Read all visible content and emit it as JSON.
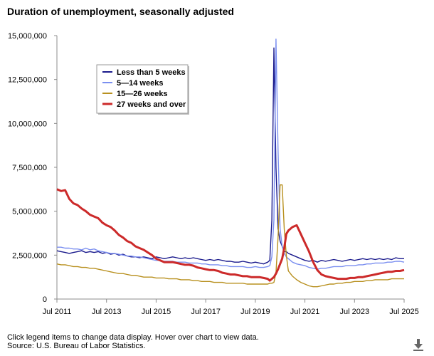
{
  "title": "Duration of unemployment, seasonally adjusted",
  "footer": {
    "note": "Click legend items to change data display. Hover over chart to view data.",
    "source": "Source: U.S. Bureau of Labor Statistics."
  },
  "download_icon": "download-arrow-icon",
  "chart_data": {
    "type": "line",
    "x": [
      "2011-07",
      "2011-09",
      "2011-11",
      "2012-01",
      "2012-03",
      "2012-05",
      "2012-07",
      "2012-09",
      "2012-11",
      "2013-01",
      "2013-03",
      "2013-05",
      "2013-07",
      "2013-09",
      "2013-11",
      "2014-01",
      "2014-03",
      "2014-05",
      "2014-07",
      "2014-09",
      "2014-11",
      "2015-01",
      "2015-03",
      "2015-05",
      "2015-07",
      "2015-09",
      "2015-11",
      "2016-01",
      "2016-03",
      "2016-05",
      "2016-07",
      "2016-09",
      "2016-11",
      "2017-01",
      "2017-03",
      "2017-05",
      "2017-07",
      "2017-09",
      "2017-11",
      "2018-01",
      "2018-03",
      "2018-05",
      "2018-07",
      "2018-09",
      "2018-11",
      "2019-01",
      "2019-03",
      "2019-05",
      "2019-07",
      "2019-09",
      "2019-11",
      "2020-01",
      "2020-02",
      "2020-03",
      "2020-04",
      "2020-05",
      "2020-06",
      "2020-07",
      "2020-08",
      "2020-09",
      "2020-10",
      "2020-11",
      "2021-01",
      "2021-03",
      "2021-05",
      "2021-07",
      "2021-09",
      "2021-11",
      "2022-01",
      "2022-03",
      "2022-05",
      "2022-07",
      "2022-09",
      "2022-11",
      "2023-01",
      "2023-03",
      "2023-05",
      "2023-07",
      "2023-09",
      "2023-11",
      "2024-01",
      "2024-03",
      "2024-05",
      "2024-07",
      "2024-09",
      "2024-11",
      "2025-01",
      "2025-03",
      "2025-05",
      "2025-07"
    ],
    "series": [
      {
        "name": "Less than 5 weeks",
        "color": "#1a1a8c",
        "values": [
          2750000,
          2700000,
          2650000,
          2600000,
          2650000,
          2700000,
          2750000,
          2650000,
          2700000,
          2650000,
          2700000,
          2600000,
          2650000,
          2550000,
          2600000,
          2500000,
          2550000,
          2450000,
          2400000,
          2400000,
          2350000,
          2400000,
          2350000,
          2300000,
          2400000,
          2350000,
          2300000,
          2350000,
          2400000,
          2350000,
          2300000,
          2350000,
          2300000,
          2350000,
          2300000,
          2250000,
          2200000,
          2250000,
          2200000,
          2250000,
          2200000,
          2150000,
          2150000,
          2100000,
          2100000,
          2150000,
          2100000,
          2050000,
          2100000,
          2050000,
          2000000,
          2100000,
          2200000,
          4500000,
          14300000,
          7500000,
          4000000,
          3300000,
          3000000,
          2700000,
          2700000,
          2600000,
          2500000,
          2400000,
          2300000,
          2200000,
          2150000,
          2200000,
          2100000,
          2200000,
          2150000,
          2200000,
          2250000,
          2200000,
          2150000,
          2200000,
          2250000,
          2200000,
          2250000,
          2300000,
          2250000,
          2300000,
          2250000,
          2300000,
          2250000,
          2300000,
          2250000,
          2350000,
          2300000,
          2300000
        ]
      },
      {
        "name": "5—14 weeks",
        "color": "#7b8ff0",
        "values": [
          2950000,
          2950000,
          2900000,
          2900000,
          2850000,
          2850000,
          2800000,
          2900000,
          2800000,
          2850000,
          2750000,
          2700000,
          2650000,
          2600000,
          2600000,
          2550000,
          2500000,
          2450000,
          2450000,
          2400000,
          2400000,
          2350000,
          2300000,
          2250000,
          2200000,
          2200000,
          2150000,
          2150000,
          2150000,
          2100000,
          2100000,
          2100000,
          2050000,
          2050000,
          2050000,
          2000000,
          2000000,
          1950000,
          1950000,
          1950000,
          1900000,
          1900000,
          1850000,
          1850000,
          1850000,
          1850000,
          1800000,
          1800000,
          1850000,
          1800000,
          1800000,
          1850000,
          1900000,
          2400000,
          4500000,
          14800000,
          8500000,
          4000000,
          3000000,
          2600000,
          2400000,
          2300000,
          2100000,
          2000000,
          1950000,
          1900000,
          1800000,
          1750000,
          1700000,
          1750000,
          1750000,
          1800000,
          1850000,
          1850000,
          1850000,
          1900000,
          1900000,
          1900000,
          1950000,
          1950000,
          2000000,
          2000000,
          2050000,
          2050000,
          2050000,
          2100000,
          2100000,
          2150000,
          2150000,
          2100000
        ]
      },
      {
        "name": "15—26 weeks",
        "color": "#b8901f",
        "values": [
          2000000,
          1950000,
          1950000,
          1900000,
          1850000,
          1850000,
          1800000,
          1800000,
          1750000,
          1750000,
          1700000,
          1650000,
          1600000,
          1550000,
          1500000,
          1450000,
          1450000,
          1400000,
          1350000,
          1350000,
          1300000,
          1250000,
          1250000,
          1250000,
          1200000,
          1200000,
          1200000,
          1150000,
          1150000,
          1150000,
          1100000,
          1100000,
          1100000,
          1050000,
          1050000,
          1000000,
          1000000,
          1000000,
          950000,
          950000,
          950000,
          900000,
          900000,
          900000,
          900000,
          900000,
          850000,
          850000,
          850000,
          850000,
          850000,
          850000,
          900000,
          900000,
          950000,
          1500000,
          3500000,
          6500000,
          6500000,
          4000000,
          2500000,
          1600000,
          1300000,
          1100000,
          950000,
          850000,
          750000,
          700000,
          700000,
          750000,
          800000,
          850000,
          850000,
          900000,
          900000,
          950000,
          950000,
          1000000,
          1000000,
          1000000,
          1050000,
          1050000,
          1100000,
          1100000,
          1100000,
          1100000,
          1150000,
          1150000,
          1150000,
          1150000
        ]
      },
      {
        "name": "27 weeks and over",
        "color": "#cc2a2a",
        "values": [
          6250000,
          6150000,
          6200000,
          5700000,
          5450000,
          5350000,
          5150000,
          5000000,
          4800000,
          4700000,
          4600000,
          4350000,
          4200000,
          4100000,
          3900000,
          3650000,
          3500000,
          3300000,
          3200000,
          3000000,
          2900000,
          2800000,
          2650000,
          2500000,
          2300000,
          2200000,
          2100000,
          2100000,
          2100000,
          2050000,
          2000000,
          1950000,
          1950000,
          1900000,
          1800000,
          1750000,
          1700000,
          1650000,
          1650000,
          1600000,
          1500000,
          1450000,
          1400000,
          1400000,
          1350000,
          1300000,
          1300000,
          1250000,
          1250000,
          1250000,
          1200000,
          1150000,
          1050000,
          1150000,
          1250000,
          1450000,
          1700000,
          2000000,
          2300000,
          2900000,
          3700000,
          3900000,
          4100000,
          4200000,
          3700000,
          3200000,
          2700000,
          2100000,
          1650000,
          1400000,
          1300000,
          1250000,
          1200000,
          1150000,
          1150000,
          1150000,
          1200000,
          1200000,
          1250000,
          1250000,
          1300000,
          1350000,
          1400000,
          1450000,
          1500000,
          1550000,
          1550000,
          1600000,
          1600000,
          1650000
        ]
      }
    ],
    "xticks": [
      {
        "label": "Jul 2011",
        "x": "2011-07"
      },
      {
        "label": "Jul 2013",
        "x": "2013-07"
      },
      {
        "label": "Jul 2015",
        "x": "2015-07"
      },
      {
        "label": "Jul 2017",
        "x": "2017-07"
      },
      {
        "label": "Jul 2019",
        "x": "2019-07"
      },
      {
        "label": "Jul 2021",
        "x": "2021-07"
      },
      {
        "label": "Jul 2023",
        "x": "2023-07"
      },
      {
        "label": "Jul 2025",
        "x": "2025-07"
      }
    ],
    "yticks": [
      {
        "label": "0",
        "value": 0
      },
      {
        "label": "2,500,000",
        "value": 2500000
      },
      {
        "label": "5,000,000",
        "value": 5000000
      },
      {
        "label": "7,500,000",
        "value": 7500000
      },
      {
        "label": "10,000,000",
        "value": 10000000
      },
      {
        "label": "12,500,000",
        "value": 12500000
      },
      {
        "label": "15,000,000",
        "value": 15000000
      }
    ],
    "ylim": [
      0,
      15000000
    ],
    "xlim": [
      "2011-07",
      "2025-07"
    ],
    "legend_position": "top-left",
    "grid": false
  }
}
